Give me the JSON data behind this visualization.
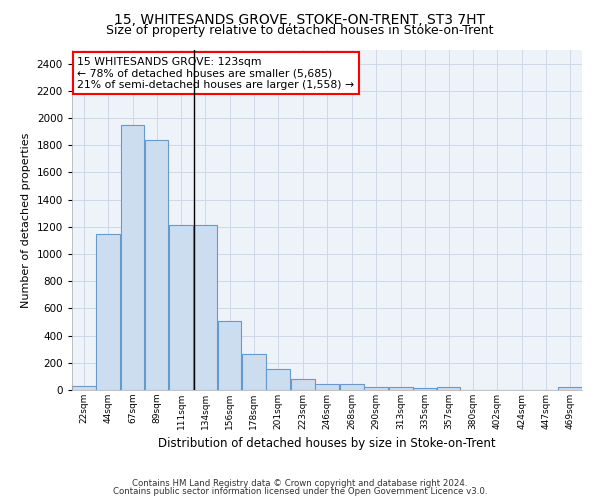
{
  "title": "15, WHITESANDS GROVE, STOKE-ON-TRENT, ST3 7HT",
  "subtitle": "Size of property relative to detached houses in Stoke-on-Trent",
  "xlabel": "Distribution of detached houses by size in Stoke-on-Trent",
  "ylabel": "Number of detached properties",
  "bar_color": "#ccddf0",
  "bar_edge_color": "#6699cc",
  "categories": [
    "22sqm",
    "44sqm",
    "67sqm",
    "89sqm",
    "111sqm",
    "134sqm",
    "156sqm",
    "178sqm",
    "201sqm",
    "223sqm",
    "246sqm",
    "268sqm",
    "290sqm",
    "313sqm",
    "335sqm",
    "357sqm",
    "380sqm",
    "402sqm",
    "424sqm",
    "447sqm",
    "469sqm"
  ],
  "values": [
    28,
    1150,
    1950,
    1840,
    1215,
    1215,
    510,
    265,
    155,
    80,
    47,
    42,
    22,
    20,
    12,
    20,
    0,
    0,
    0,
    0,
    20
  ],
  "ylim": [
    0,
    2500
  ],
  "yticks": [
    0,
    200,
    400,
    600,
    800,
    1000,
    1200,
    1400,
    1600,
    1800,
    2000,
    2200,
    2400
  ],
  "property_sqm": 123,
  "bin_edges": [
    11,
    33,
    55.5,
    78,
    100,
    122.5,
    145,
    167,
    189.5,
    212,
    234.5,
    257,
    279.5,
    302,
    324.5,
    346,
    368.5,
    391,
    413.5,
    436,
    458,
    480
  ],
  "annotation_title": "15 WHITESANDS GROVE: 123sqm",
  "annotation_line1": "← 78% of detached houses are smaller (5,685)",
  "annotation_line2": "21% of semi-detached houses are larger (1,558) →",
  "footer1": "Contains HM Land Registry data © Crown copyright and database right 2024.",
  "footer2": "Contains public sector information licensed under the Open Government Licence v3.0.",
  "bg_color": "#eef2f9",
  "grid_color": "#d0d8e8",
  "title_fontsize": 10,
  "subtitle_fontsize": 9
}
